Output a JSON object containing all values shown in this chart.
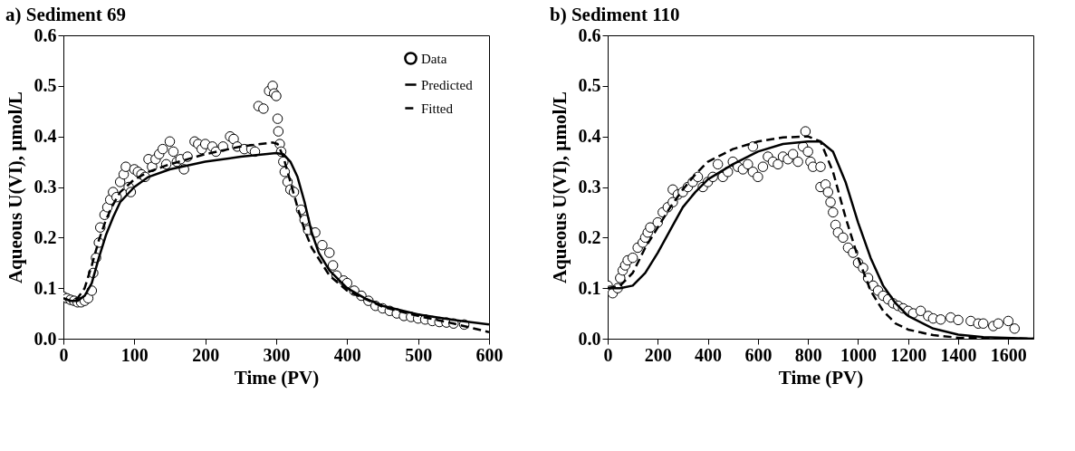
{
  "chart_data": [
    {
      "type": "scatter",
      "title": "a) Sediment 69",
      "xlabel": "Time (PV)",
      "ylabel": "Aqueous U(VI), µmol/L",
      "xlim": [
        0,
        600
      ],
      "xticks": [
        0,
        100,
        200,
        300,
        400,
        500,
        600
      ],
      "ylim": [
        0,
        0.6
      ],
      "yticks": [
        {
          "value": 0,
          "label": "0.0"
        },
        0.1,
        0.2,
        0.3,
        0.4,
        0.5,
        0.6
      ],
      "grid": false,
      "legend": "top right",
      "series": [
        {
          "name": "Data",
          "type": "scatter",
          "marker": "circle",
          "color": "#000000",
          "x": [
            0,
            5,
            10,
            15,
            20,
            25,
            30,
            35,
            40,
            42,
            46,
            50,
            52,
            58,
            62,
            66,
            70,
            75,
            80,
            85,
            88,
            92,
            95,
            100,
            105,
            110,
            115,
            120,
            125,
            130,
            135,
            140,
            145,
            150,
            155,
            160,
            165,
            170,
            175,
            185,
            190,
            195,
            200,
            210,
            215,
            225,
            235,
            240,
            245,
            255,
            265,
            270,
            275,
            282,
            290,
            295,
            297,
            300,
            302,
            303,
            305,
            307,
            310,
            312,
            316,
            320,
            325,
            335,
            340,
            345,
            355,
            365,
            375,
            380,
            385,
            395,
            400,
            410,
            420,
            430,
            440,
            450,
            460,
            470,
            480,
            490,
            500,
            510,
            520,
            530,
            540,
            550,
            565
          ],
          "values": [
            0.083,
            0.08,
            0.077,
            0.075,
            0.072,
            0.072,
            0.075,
            0.08,
            0.095,
            0.13,
            0.16,
            0.19,
            0.22,
            0.245,
            0.26,
            0.275,
            0.29,
            0.28,
            0.31,
            0.325,
            0.34,
            0.3,
            0.29,
            0.335,
            0.33,
            0.325,
            0.32,
            0.355,
            0.34,
            0.355,
            0.365,
            0.375,
            0.345,
            0.39,
            0.37,
            0.35,
            0.355,
            0.335,
            0.36,
            0.39,
            0.385,
            0.375,
            0.385,
            0.38,
            0.37,
            0.38,
            0.4,
            0.395,
            0.38,
            0.375,
            0.375,
            0.37,
            0.46,
            0.455,
            0.49,
            0.5,
            0.485,
            0.48,
            0.435,
            0.41,
            0.385,
            0.37,
            0.35,
            0.33,
            0.31,
            0.295,
            0.29,
            0.255,
            0.235,
            0.215,
            0.21,
            0.185,
            0.17,
            0.145,
            0.125,
            0.115,
            0.11,
            0.095,
            0.085,
            0.075,
            0.065,
            0.06,
            0.055,
            0.05,
            0.045,
            0.043,
            0.04,
            0.038,
            0.035,
            0.033,
            0.032,
            0.03,
            0.028
          ]
        },
        {
          "name": "Predicted",
          "type": "line",
          "marker": "none",
          "line_style": "solid",
          "color": "#000000",
          "x": [
            0,
            10,
            20,
            30,
            40,
            50,
            60,
            70,
            80,
            100,
            120,
            150,
            200,
            250,
            300,
            310,
            320,
            330,
            340,
            350,
            360,
            375,
            400,
            425,
            450,
            500,
            550,
            600
          ],
          "values": [
            0.08,
            0.075,
            0.075,
            0.085,
            0.11,
            0.16,
            0.205,
            0.24,
            0.27,
            0.3,
            0.32,
            0.335,
            0.35,
            0.36,
            0.367,
            0.365,
            0.35,
            0.32,
            0.27,
            0.21,
            0.17,
            0.135,
            0.1,
            0.08,
            0.065,
            0.048,
            0.037,
            0.028
          ]
        },
        {
          "name": "Fitted",
          "type": "line",
          "marker": "none",
          "line_style": "dashed",
          "color": "#000000",
          "x": [
            0,
            10,
            20,
            30,
            40,
            50,
            60,
            70,
            80,
            100,
            120,
            150,
            200,
            250,
            295,
            302,
            310,
            320,
            330,
            340,
            350,
            375,
            400,
            450,
            500,
            550,
            600
          ],
          "values": [
            0.08,
            0.075,
            0.08,
            0.1,
            0.145,
            0.195,
            0.235,
            0.265,
            0.29,
            0.315,
            0.33,
            0.345,
            0.365,
            0.38,
            0.388,
            0.385,
            0.36,
            0.31,
            0.26,
            0.215,
            0.18,
            0.125,
            0.095,
            0.063,
            0.045,
            0.03,
            0.013
          ]
        }
      ]
    },
    {
      "type": "scatter",
      "title": "b) Sediment 110",
      "xlabel": "Time (PV)",
      "ylabel": "Aqueous U(VI), µmol/L",
      "xlim": [
        0,
        1700
      ],
      "xticks": [
        0,
        200,
        400,
        600,
        800,
        1000,
        1200,
        1400,
        1600
      ],
      "ylim": [
        0,
        0.6
      ],
      "yticks": [
        {
          "value": 0,
          "label": "0.0"
        },
        0.1,
        0.2,
        0.3,
        0.4,
        0.5,
        0.6
      ],
      "grid": false,
      "legend": false,
      "series": [
        {
          "type": "scatter",
          "marker": "circle",
          "color": "#000000",
          "x": [
            0,
            10,
            20,
            40,
            50,
            60,
            70,
            80,
            100,
            120,
            140,
            150,
            160,
            170,
            200,
            220,
            240,
            260,
            260,
            280,
            300,
            320,
            340,
            360,
            380,
            400,
            420,
            440,
            460,
            480,
            500,
            520,
            540,
            560,
            580,
            580,
            600,
            620,
            640,
            660,
            680,
            700,
            720,
            740,
            760,
            780,
            790,
            800,
            810,
            820,
            850,
            850,
            870,
            880,
            890,
            900,
            910,
            920,
            940,
            960,
            980,
            1000,
            1020,
            1040,
            1060,
            1080,
            1100,
            1120,
            1140,
            1160,
            1180,
            1200,
            1220,
            1250,
            1280,
            1300,
            1330,
            1370,
            1400,
            1450,
            1480,
            1500,
            1540,
            1560,
            1600,
            1625
          ],
          "values": [
            0.105,
            0.095,
            0.09,
            0.1,
            0.12,
            0.135,
            0.145,
            0.155,
            0.16,
            0.18,
            0.19,
            0.2,
            0.21,
            0.22,
            0.23,
            0.25,
            0.26,
            0.27,
            0.295,
            0.285,
            0.29,
            0.3,
            0.31,
            0.32,
            0.3,
            0.31,
            0.32,
            0.345,
            0.32,
            0.33,
            0.35,
            0.34,
            0.335,
            0.345,
            0.38,
            0.33,
            0.32,
            0.34,
            0.36,
            0.35,
            0.345,
            0.36,
            0.355,
            0.365,
            0.35,
            0.38,
            0.41,
            0.37,
            0.35,
            0.34,
            0.34,
            0.3,
            0.305,
            0.29,
            0.27,
            0.25,
            0.225,
            0.21,
            0.2,
            0.18,
            0.17,
            0.15,
            0.14,
            0.12,
            0.105,
            0.095,
            0.085,
            0.078,
            0.07,
            0.065,
            0.06,
            0.055,
            0.05,
            0.055,
            0.045,
            0.04,
            0.038,
            0.042,
            0.037,
            0.035,
            0.03,
            0.03,
            0.025,
            0.03,
            0.035,
            0.02
          ]
        },
        {
          "type": "line",
          "marker": "none",
          "line_style": "solid",
          "color": "#000000",
          "x": [
            0,
            50,
            100,
            150,
            200,
            250,
            300,
            350,
            400,
            500,
            600,
            700,
            800,
            850,
            900,
            950,
            1000,
            1050,
            1100,
            1150,
            1200,
            1300,
            1400,
            1500,
            1700
          ],
          "values": [
            0.1,
            0.1,
            0.105,
            0.13,
            0.17,
            0.215,
            0.26,
            0.29,
            0.315,
            0.345,
            0.37,
            0.385,
            0.39,
            0.39,
            0.37,
            0.31,
            0.23,
            0.16,
            0.105,
            0.07,
            0.045,
            0.02,
            0.008,
            0.003,
            0.0
          ]
        },
        {
          "type": "line",
          "marker": "none",
          "line_style": "dashed",
          "color": "#000000",
          "x": [
            0,
            50,
            100,
            150,
            200,
            250,
            300,
            350,
            400,
            500,
            600,
            700,
            800,
            850,
            900,
            950,
            1000,
            1050,
            1100,
            1150,
            1200,
            1300,
            1400,
            1700
          ],
          "values": [
            0.1,
            0.105,
            0.13,
            0.18,
            0.22,
            0.26,
            0.295,
            0.325,
            0.35,
            0.375,
            0.39,
            0.398,
            0.4,
            0.39,
            0.33,
            0.24,
            0.16,
            0.095,
            0.055,
            0.03,
            0.018,
            0.007,
            0.002,
            0.0
          ]
        }
      ]
    }
  ]
}
